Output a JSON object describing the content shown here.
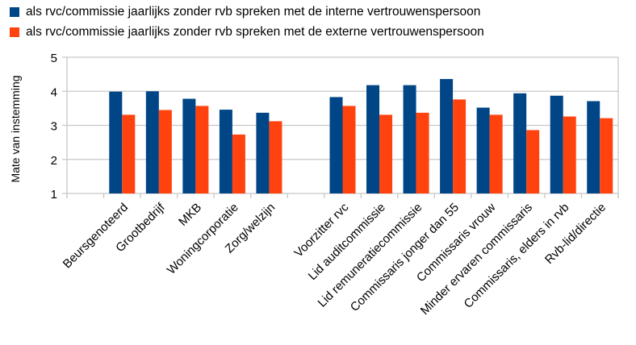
{
  "chart_data": {
    "type": "bar",
    "title": "",
    "xlabel": "",
    "ylabel": "Mate van instemming",
    "ylim": [
      1,
      5
    ],
    "yticks": [
      "1",
      "2",
      "3",
      "4",
      "5"
    ],
    "grid": true,
    "legend_placement": "top-left",
    "categories": [
      "Beursgenoteerd",
      "Grootbedrijf",
      "MKB",
      "Woningcorporatie",
      "Zorg/welzijn",
      "",
      "Voorzitter rvc",
      "Lid auditcommissie",
      "Lid remuneratiecommissie",
      "Commissaris jonger dan 55",
      "Commissaris vrouw",
      "Minder ervaren commissaris",
      "Commissaris, elders in rvb",
      "Rvb-lid/directie"
    ],
    "series": [
      {
        "name": "als rvc/commissie jaarlijks zonder rvb spreken met de interne vertrouwenspersoon",
        "color": "#004586",
        "values": [
          3.99,
          4.0,
          3.78,
          3.46,
          3.37,
          null,
          3.83,
          4.18,
          4.18,
          4.36,
          3.52,
          3.94,
          3.87,
          3.71
        ]
      },
      {
        "name": "als rvc/commissie jaarlijks zonder rvb spreken met de externe vertrouwenspersoon",
        "color": "#ff420e",
        "values": [
          3.31,
          3.45,
          3.57,
          2.73,
          3.12,
          null,
          3.57,
          3.31,
          3.37,
          3.76,
          3.31,
          2.86,
          3.26,
          3.21
        ]
      }
    ]
  }
}
